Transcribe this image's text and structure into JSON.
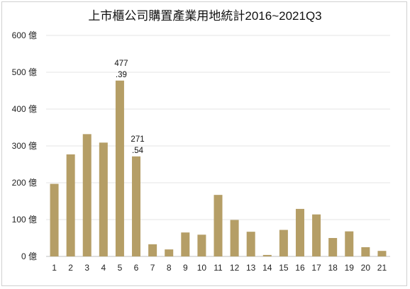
{
  "chart_data": {
    "type": "bar",
    "title": "上市櫃公司購置產業用地統計2016~2021Q3",
    "xlabel": "",
    "ylabel": "",
    "categories": [
      "1",
      "2",
      "3",
      "4",
      "5",
      "6",
      "7",
      "8",
      "9",
      "10",
      "11",
      "12",
      "13",
      "14",
      "15",
      "16",
      "17",
      "18",
      "19",
      "20",
      "21"
    ],
    "values": [
      197,
      277,
      332,
      309,
      477.39,
      271.54,
      33,
      19,
      65,
      59,
      167,
      99,
      67,
      4,
      72,
      129,
      114,
      50,
      68,
      25,
      15
    ],
    "ylim": [
      0,
      600
    ],
    "yticks": [
      {
        "value": 0,
        "label": "0 億"
      },
      {
        "value": 100,
        "label": "100 億"
      },
      {
        "value": 200,
        "label": "200 億"
      },
      {
        "value": 300,
        "label": "300 億"
      },
      {
        "value": 400,
        "label": "400 億"
      },
      {
        "value": 500,
        "label": "500 億"
      },
      {
        "value": 600,
        "label": "600 億"
      }
    ],
    "data_labels": [
      {
        "index": 4,
        "line1": "477",
        "line2": ".39"
      },
      {
        "index": 5,
        "line1": "271",
        "line2": ".54"
      }
    ],
    "grid": true,
    "legend": "none",
    "colors": {
      "bar": "#b59e66",
      "grid": "#e6e6e6",
      "axis": "#bfbfbf"
    }
  }
}
